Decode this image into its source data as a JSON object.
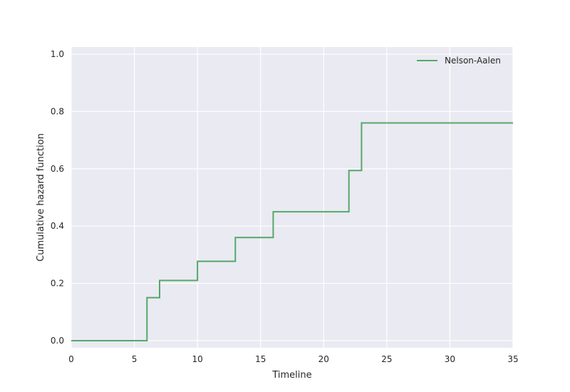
{
  "chart_data": {
    "type": "line",
    "title": "",
    "xlabel": "Timeline",
    "ylabel": "Cumulative hazard function",
    "xlim": [
      0,
      35
    ],
    "ylim": [
      -0.025,
      1.025
    ],
    "xticks": [
      0,
      5,
      10,
      15,
      20,
      25,
      30,
      35
    ],
    "yticks": [
      0.0,
      0.2,
      0.4,
      0.6,
      0.8,
      1.0
    ],
    "xtick_labels": [
      "0",
      "5",
      "10",
      "15",
      "20",
      "25",
      "30",
      "35"
    ],
    "ytick_labels": [
      "0.0",
      "0.2",
      "0.4",
      "0.6",
      "0.8",
      "1.0"
    ],
    "grid": true,
    "legend": "top-right",
    "step": "post",
    "series": [
      {
        "name": "Nelson-Aalen",
        "color": "#55a868",
        "x": [
          0,
          6,
          7,
          10,
          13,
          16,
          22,
          23,
          35
        ],
        "y": [
          0.0,
          0.15,
          0.21,
          0.277,
          0.36,
          0.45,
          0.594,
          0.76,
          0.76
        ]
      }
    ]
  },
  "colors": {
    "plot_background": "#eaeaf2",
    "grid": "#ffffff"
  }
}
